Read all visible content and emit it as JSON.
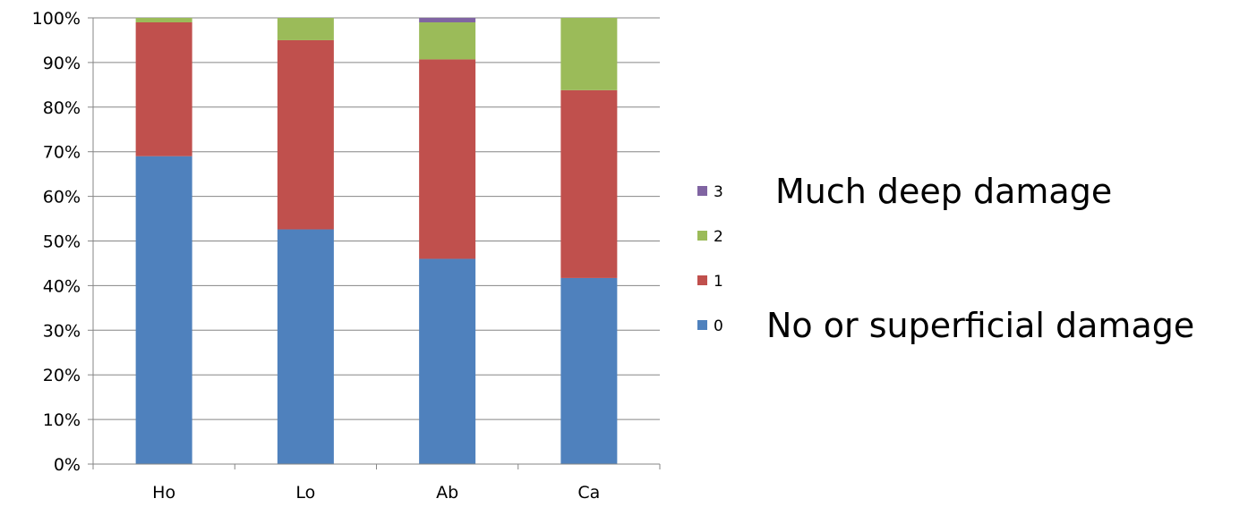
{
  "chart_data": {
    "type": "bar",
    "stacked": true,
    "percent_stacked": true,
    "categories": [
      "Ho",
      "Lo",
      "Ab",
      "Ca"
    ],
    "series": [
      {
        "name": "0",
        "color": "#4F81BD",
        "values": [
          69,
          52.6,
          46,
          41.7
        ]
      },
      {
        "name": "1",
        "color": "#C0504D",
        "values": [
          30,
          42.4,
          44.7,
          42.1
        ]
      },
      {
        "name": "2",
        "color": "#9BBB59",
        "values": [
          1,
          5,
          8.3,
          16.2
        ]
      },
      {
        "name": "3",
        "color": "#8064A2",
        "values": [
          0,
          0,
          1,
          0
        ]
      }
    ],
    "ylim": [
      0,
      100
    ],
    "y_ticks": [
      "0%",
      "10%",
      "20%",
      "30%",
      "40%",
      "50%",
      "60%",
      "70%",
      "80%",
      "90%",
      "100%"
    ],
    "grid": true,
    "legend_position": "right",
    "legend_order": [
      "3",
      "2",
      "1",
      "0"
    ],
    "annotations": [
      {
        "text": "Much deep damage",
        "series": "3"
      },
      {
        "text": "No or superficial damage",
        "series": "0"
      }
    ]
  }
}
